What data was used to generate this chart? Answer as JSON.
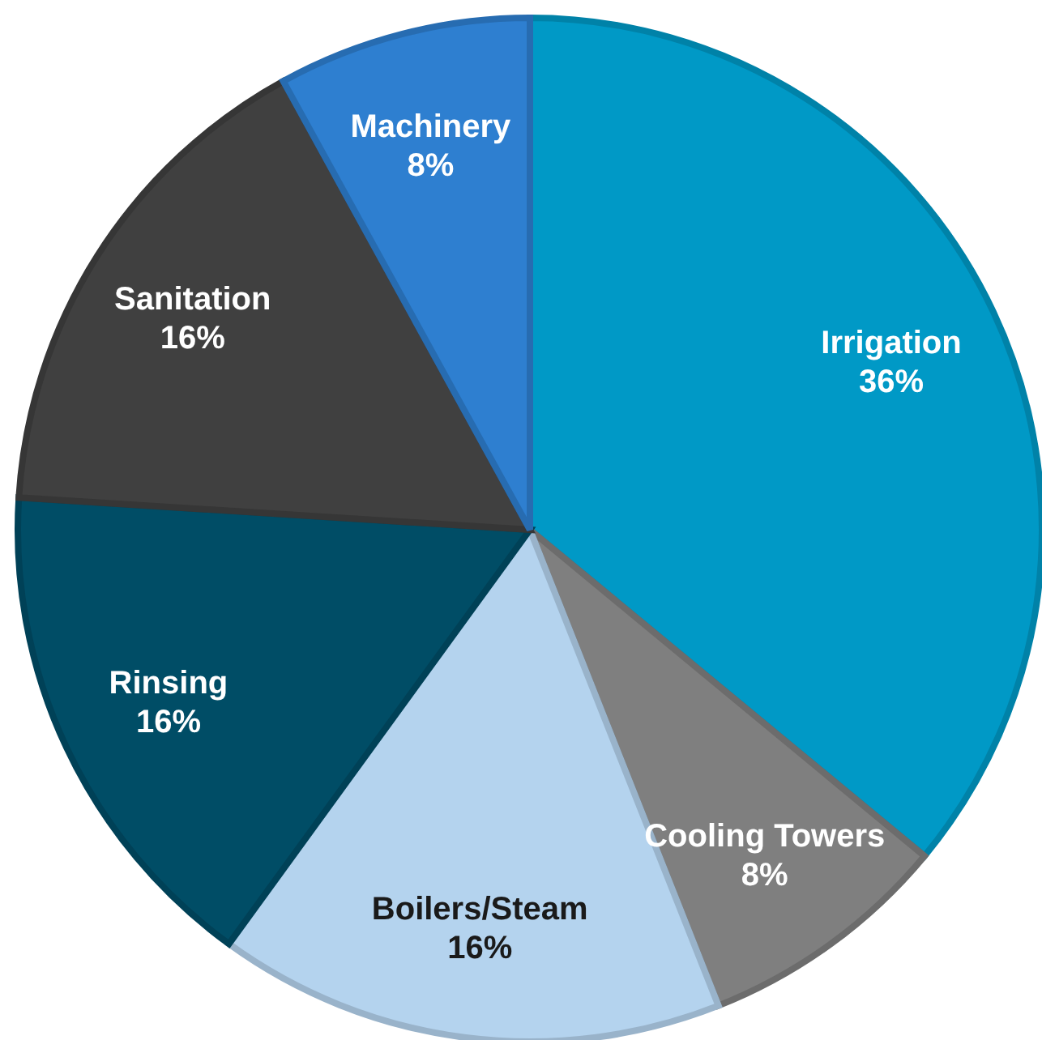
{
  "chart_data": {
    "type": "pie",
    "categories": [
      "Irrigation",
      "Cooling Towers",
      "Boilers/Steam",
      "Rinsing",
      "Sanitation",
      "Machinery"
    ],
    "values": [
      36,
      8,
      16,
      16,
      16,
      8
    ],
    "colors": [
      "#0099c6",
      "#7f7f7f",
      "#b4d3ee",
      "#004d66",
      "#404040",
      "#2e7fd0"
    ],
    "value_labels": [
      "36%",
      "8%",
      "16%",
      "16%",
      "16%",
      "8%"
    ],
    "legend": false
  }
}
